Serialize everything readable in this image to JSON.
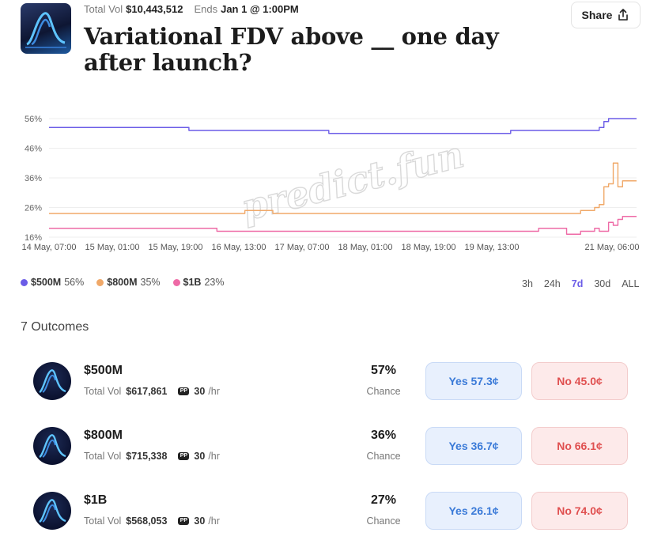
{
  "market": {
    "total_vol_label": "Total Vol",
    "total_vol_value": "$10,443,512",
    "ends_label": "Ends",
    "ends_value": "Jan 1 @ 1:00PM",
    "title": "Variational FDV above __ one day after launch?",
    "share_label": "Share"
  },
  "watermark": "predict.fun",
  "chart_data": {
    "type": "line",
    "x_tick_labels": [
      "14 May, 07:00",
      "15 May, 01:00",
      "15 May, 19:00",
      "16 May, 13:00",
      "17 May, 07:00",
      "18 May, 01:00",
      "18 May, 19:00",
      "19 May, 13:00",
      "21 May, 06:00"
    ],
    "y_tick_labels": [
      "56%",
      "46%",
      "36%",
      "26%",
      "16%"
    ],
    "ylim": [
      16,
      56
    ],
    "x": [
      0,
      6,
      12,
      18,
      24,
      27,
      30,
      36,
      42,
      48,
      54,
      60,
      66,
      72,
      78,
      84,
      90,
      96,
      99,
      102,
      105,
      108,
      111,
      114,
      117,
      118,
      119,
      120,
      121,
      122,
      123,
      124,
      126
    ],
    "series": [
      {
        "name": "$500M",
        "color": "#6b5ce7",
        "values": [
          53,
          53,
          53,
          53,
          53,
          53,
          52,
          52,
          52,
          52,
          52,
          51,
          51,
          51,
          51,
          51,
          51,
          51,
          52,
          52,
          52,
          52,
          52,
          52,
          52,
          53,
          55,
          56,
          56,
          56,
          56,
          56,
          56
        ]
      },
      {
        "name": "$800M",
        "color": "#f0a868",
        "values": [
          24,
          24,
          24,
          24,
          24,
          24,
          24,
          24,
          25,
          24,
          24,
          24,
          24,
          24,
          24,
          24,
          24,
          24,
          24,
          24,
          24,
          24,
          24,
          25,
          26,
          27,
          33,
          34,
          41,
          33,
          35,
          35,
          35
        ]
      },
      {
        "name": "$1B",
        "color": "#ee6aa6",
        "values": [
          19,
          19,
          19,
          19,
          19,
          19,
          19,
          18,
          18,
          18,
          18,
          18,
          18,
          18,
          18,
          18,
          18,
          18,
          18,
          18,
          19,
          19,
          17,
          18,
          19,
          18,
          18,
          21,
          20,
          22,
          23,
          23,
          23
        ]
      }
    ]
  },
  "legend": [
    {
      "label": "$500M",
      "value": "56%",
      "color": "#6b5ce7"
    },
    {
      "label": "$800M",
      "value": "35%",
      "color": "#f0a868"
    },
    {
      "label": "$1B",
      "value": "23%",
      "color": "#ee6aa6"
    }
  ],
  "ranges": [
    "3h",
    "24h",
    "7d",
    "30d",
    "ALL"
  ],
  "active_range": "7d",
  "outcomes_title": "7 Outcomes",
  "outcomes": [
    {
      "name": "$500M",
      "vol_label": "Total Vol",
      "vol": "$617,861",
      "pp_label": "PP",
      "rate": "30",
      "rate_unit": "/hr",
      "pct": "57%",
      "chance_label": "Chance",
      "yes": "Yes 57.3¢",
      "no": "No 45.0¢"
    },
    {
      "name": "$800M",
      "vol_label": "Total Vol",
      "vol": "$715,338",
      "pp_label": "PP",
      "rate": "30",
      "rate_unit": "/hr",
      "pct": "36%",
      "chance_label": "Chance",
      "yes": "Yes 36.7¢",
      "no": "No 66.1¢"
    },
    {
      "name": "$1B",
      "vol_label": "Total Vol",
      "vol": "$568,053",
      "pp_label": "PP",
      "rate": "30",
      "rate_unit": "/hr",
      "pct": "27%",
      "chance_label": "Chance",
      "yes": "Yes 26.1¢",
      "no": "No 74.0¢"
    }
  ]
}
